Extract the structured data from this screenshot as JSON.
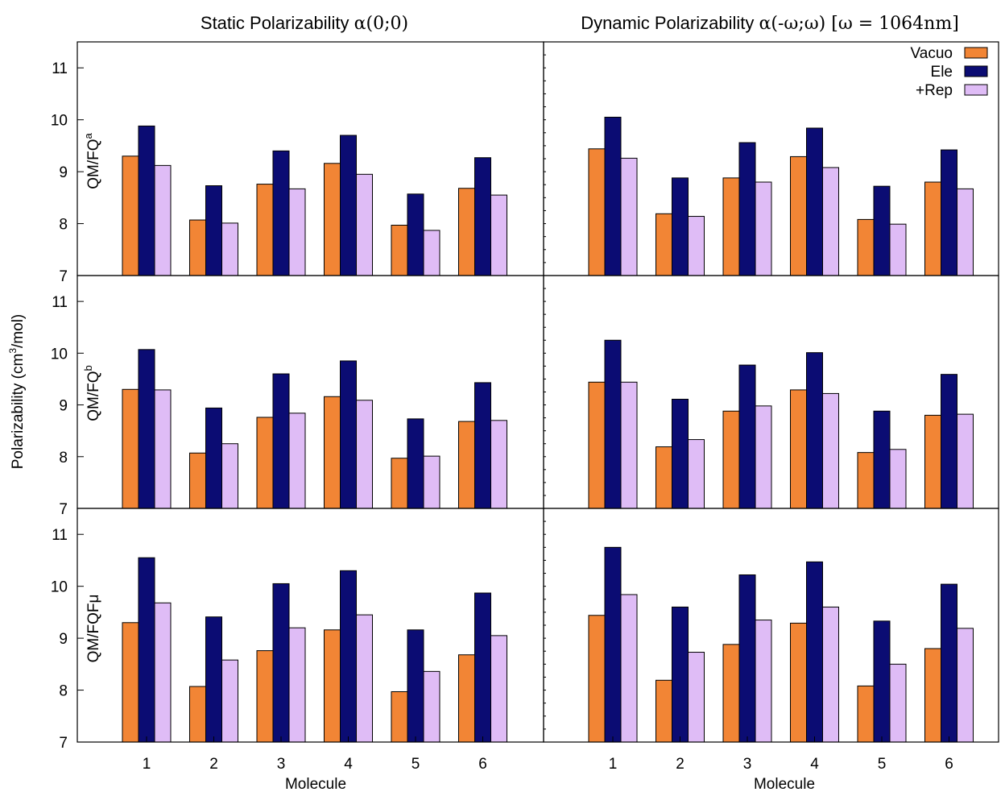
{
  "figure": {
    "column_titles": [
      "Static Polarizability",
      "Dynamic Polarizability"
    ],
    "column_title_suffixes": [
      "α(0;0)",
      "α(-ω;ω) [ω = 1064nm]"
    ],
    "row_labels": [
      {
        "base": "QM/FQ",
        "sup": "a"
      },
      {
        "base": "QM/FQ",
        "sup": "b"
      },
      {
        "base": "QM/FQFμ",
        "sup": ""
      }
    ],
    "ylabel": {
      "pre": "Polarizability (cm",
      "sup": "3",
      "post": "/mol)"
    },
    "xlabel": "Molecule",
    "colors": {
      "Vacuo": "#f28535",
      "Ele": "#0b0c73",
      "+Rep": "#dfbcf6"
    }
  },
  "chart_data": [
    {
      "type": "bar",
      "panel": "static-qmfq-a",
      "categories": [
        "1",
        "2",
        "3",
        "4",
        "5",
        "6"
      ],
      "ylim": [
        7,
        11.5
      ],
      "yticks": [
        7,
        8,
        9,
        10,
        11
      ],
      "series": [
        {
          "name": "Vacuo",
          "values": [
            9.3,
            8.07,
            8.76,
            9.16,
            7.97,
            8.68
          ]
        },
        {
          "name": "Ele",
          "values": [
            9.88,
            8.73,
            9.4,
            9.7,
            8.57,
            9.27
          ]
        },
        {
          "name": "+Rep",
          "values": [
            9.12,
            8.01,
            8.67,
            8.95,
            7.87,
            8.55
          ]
        }
      ]
    },
    {
      "type": "bar",
      "panel": "dynamic-qmfq-a",
      "categories": [
        "1",
        "2",
        "3",
        "4",
        "5",
        "6"
      ],
      "ylim": [
        7,
        11.5
      ],
      "yticks": [
        7,
        8,
        9,
        10,
        11
      ],
      "series": [
        {
          "name": "Vacuo",
          "values": [
            9.44,
            8.19,
            8.88,
            9.29,
            8.08,
            8.8
          ]
        },
        {
          "name": "Ele",
          "values": [
            10.05,
            8.88,
            9.56,
            9.84,
            8.72,
            9.42
          ]
        },
        {
          "name": "+Rep",
          "values": [
            9.26,
            8.14,
            8.8,
            9.08,
            7.99,
            8.67
          ]
        }
      ]
    },
    {
      "type": "bar",
      "panel": "static-qmfq-b",
      "categories": [
        "1",
        "2",
        "3",
        "4",
        "5",
        "6"
      ],
      "ylim": [
        7,
        11.5
      ],
      "yticks": [
        7,
        8,
        9,
        10,
        11
      ],
      "series": [
        {
          "name": "Vacuo",
          "values": [
            9.3,
            8.07,
            8.76,
            9.16,
            7.97,
            8.68
          ]
        },
        {
          "name": "Ele",
          "values": [
            10.07,
            8.94,
            9.6,
            9.85,
            8.73,
            9.43
          ]
        },
        {
          "name": "+Rep",
          "values": [
            9.29,
            8.25,
            8.84,
            9.09,
            8.01,
            8.7
          ]
        }
      ]
    },
    {
      "type": "bar",
      "panel": "dynamic-qmfq-b",
      "categories": [
        "1",
        "2",
        "3",
        "4",
        "5",
        "6"
      ],
      "ylim": [
        7,
        11.5
      ],
      "yticks": [
        7,
        8,
        9,
        10,
        11
      ],
      "series": [
        {
          "name": "Vacuo",
          "values": [
            9.44,
            8.19,
            8.88,
            9.29,
            8.08,
            8.8
          ]
        },
        {
          "name": "Ele",
          "values": [
            10.25,
            9.11,
            9.77,
            10.01,
            8.88,
            9.59
          ]
        },
        {
          "name": "+Rep",
          "values": [
            9.44,
            8.33,
            8.98,
            9.22,
            8.14,
            8.82
          ]
        }
      ]
    },
    {
      "type": "bar",
      "panel": "static-qmfqfmu",
      "categories": [
        "1",
        "2",
        "3",
        "4",
        "5",
        "6"
      ],
      "ylim": [
        7,
        11.5
      ],
      "yticks": [
        7,
        8,
        9,
        10,
        11
      ],
      "series": [
        {
          "name": "Vacuo",
          "values": [
            9.3,
            8.07,
            8.76,
            9.16,
            7.97,
            8.68
          ]
        },
        {
          "name": "Ele",
          "values": [
            10.55,
            9.41,
            10.05,
            10.3,
            9.16,
            9.87
          ]
        },
        {
          "name": "+Rep",
          "values": [
            9.68,
            8.58,
            9.2,
            9.45,
            8.36,
            9.05
          ]
        }
      ]
    },
    {
      "type": "bar",
      "panel": "dynamic-qmfqfmu",
      "categories": [
        "1",
        "2",
        "3",
        "4",
        "5",
        "6"
      ],
      "ylim": [
        7,
        11.5
      ],
      "yticks": [
        7,
        8,
        9,
        10,
        11
      ],
      "series": [
        {
          "name": "Vacuo",
          "values": [
            9.44,
            8.19,
            8.88,
            9.29,
            8.08,
            8.8
          ]
        },
        {
          "name": "Ele",
          "values": [
            10.75,
            9.6,
            10.22,
            10.47,
            9.33,
            10.04
          ]
        },
        {
          "name": "+Rep",
          "values": [
            9.84,
            8.73,
            9.35,
            9.6,
            8.5,
            9.19
          ]
        }
      ]
    }
  ]
}
